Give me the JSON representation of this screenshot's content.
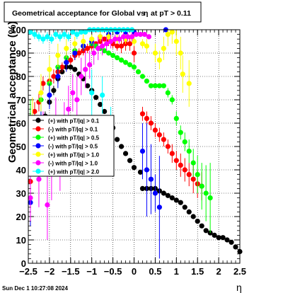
{
  "chart_data": {
    "type": "scatter",
    "title": "Geometrical acceptance for Global vs η at pT > 0.11",
    "title_parts": [
      "Geometrical acceptance for Global vs",
      "η",
      "at pT > 0.11"
    ],
    "xlabel": "η",
    "ylabel": "Geometrical acceptance (%)",
    "xlim": [
      -2.5,
      2.5
    ],
    "ylim": [
      0,
      100
    ],
    "xticks": [
      "−2.5",
      "−2",
      "−1.5",
      "−1",
      "−0.5",
      "0",
      "0.5",
      "1",
      "1.5",
      "2",
      "2.5"
    ],
    "yticks": [
      "0",
      "10",
      "20",
      "30",
      "40",
      "50",
      "60",
      "70",
      "80",
      "90",
      "100"
    ],
    "grid": true,
    "legend_position": "middle-left",
    "timestamp": "Sun Dec  1 10:27:08 2024",
    "series": [
      {
        "name": "(+) with pT/|q| > 0.1",
        "color": "#000000",
        "points": [
          [
            -2.4,
            52,
            0
          ],
          [
            -2.2,
            60,
            2
          ],
          [
            -2.1,
            63,
            2
          ],
          [
            -2.0,
            69,
            2
          ],
          [
            -1.9,
            74,
            2
          ],
          [
            -1.8,
            79,
            2
          ],
          [
            -1.7,
            82,
            1
          ],
          [
            -1.6,
            84,
            1
          ],
          [
            -1.5,
            84,
            1
          ],
          [
            -1.4,
            83,
            1
          ],
          [
            -1.3,
            81,
            1
          ],
          [
            -1.2,
            79,
            1
          ],
          [
            -1.1,
            76,
            1
          ],
          [
            -1.0,
            74,
            1
          ],
          [
            -0.9,
            71,
            1
          ],
          [
            -0.8,
            68,
            1
          ],
          [
            -0.7,
            65,
            1
          ],
          [
            -0.6,
            62,
            1
          ],
          [
            -0.5,
            58,
            1
          ],
          [
            -0.4,
            53,
            1
          ],
          [
            -0.3,
            50,
            1
          ],
          [
            -0.2,
            47,
            1
          ],
          [
            -0.1,
            44,
            1
          ],
          [
            0.0,
            41,
            1
          ],
          [
            0.15,
            39,
            0
          ],
          [
            0.2,
            32,
            1
          ],
          [
            0.3,
            32,
            1
          ],
          [
            0.4,
            32,
            1
          ],
          [
            0.5,
            32,
            1
          ],
          [
            0.6,
            31,
            1
          ],
          [
            0.7,
            30,
            1
          ],
          [
            0.8,
            29,
            1
          ],
          [
            0.9,
            28,
            1
          ],
          [
            1.0,
            27,
            1
          ],
          [
            1.1,
            26,
            1
          ],
          [
            1.2,
            24,
            1
          ],
          [
            1.3,
            22,
            1
          ],
          [
            1.4,
            20,
            1
          ],
          [
            1.5,
            18,
            1
          ],
          [
            1.6,
            16,
            1
          ],
          [
            1.7,
            14,
            1
          ],
          [
            1.8,
            13,
            1
          ],
          [
            1.9,
            12,
            1
          ],
          [
            2.0,
            11,
            1
          ],
          [
            2.1,
            11,
            1
          ],
          [
            2.2,
            10,
            1
          ],
          [
            2.3,
            9,
            1
          ],
          [
            2.4,
            7,
            1
          ],
          [
            2.5,
            5,
            1
          ]
        ]
      },
      {
        "name": "(-) with pT/|q| > 0.1",
        "color": "#ff0000",
        "points": [
          [
            -2.45,
            35,
            5
          ],
          [
            -2.35,
            65,
            4
          ],
          [
            -2.25,
            69,
            4
          ],
          [
            -2.15,
            77,
            3
          ],
          [
            -2.0,
            78,
            3
          ],
          [
            -1.9,
            80,
            3
          ],
          [
            -1.8,
            82,
            2
          ],
          [
            -1.7,
            84,
            2
          ],
          [
            -1.6,
            86,
            2
          ],
          [
            -1.5,
            87,
            2
          ],
          [
            -1.4,
            89,
            2
          ],
          [
            -1.3,
            90,
            2
          ],
          [
            -1.2,
            91,
            2
          ],
          [
            -1.1,
            92,
            2
          ],
          [
            -1.0,
            93,
            2
          ],
          [
            -0.9,
            94,
            1
          ],
          [
            -0.8,
            95,
            1
          ],
          [
            -0.7,
            96,
            1
          ],
          [
            -0.6,
            95,
            2
          ],
          [
            -0.5,
            94,
            2
          ],
          [
            -0.4,
            93,
            2
          ],
          [
            -0.3,
            93,
            3
          ],
          [
            -0.2,
            94,
            3
          ],
          [
            -0.1,
            94,
            3
          ],
          [
            0.0,
            90,
            4
          ],
          [
            0.2,
            64,
            3
          ],
          [
            0.3,
            62,
            3
          ],
          [
            0.4,
            60,
            3
          ],
          [
            0.5,
            57,
            3
          ],
          [
            0.6,
            55,
            3
          ],
          [
            0.7,
            53,
            3
          ],
          [
            0.8,
            50,
            3
          ],
          [
            0.9,
            47,
            4
          ],
          [
            1.0,
            44,
            4
          ],
          [
            1.1,
            42,
            5
          ],
          [
            1.2,
            40,
            5
          ],
          [
            1.3,
            38,
            5
          ],
          [
            1.4,
            36,
            6
          ],
          [
            1.5,
            34,
            6
          ],
          [
            1.6,
            33,
            6
          ]
        ]
      },
      {
        "name": "(+) with pT/|q| > 0.5",
        "color": "#00ff00",
        "points": [
          [
            -2.45,
            60,
            10
          ],
          [
            -2.2,
            70,
            8
          ],
          [
            -2.0,
            77,
            6
          ],
          [
            -1.8,
            84,
            4
          ],
          [
            -1.6,
            88,
            3
          ],
          [
            -1.4,
            91,
            2
          ],
          [
            -1.2,
            93,
            2
          ],
          [
            -1.0,
            94,
            1
          ],
          [
            -0.9,
            93,
            1
          ],
          [
            -0.8,
            92,
            1
          ],
          [
            -0.7,
            91,
            1
          ],
          [
            -0.6,
            90,
            1
          ],
          [
            -0.5,
            89,
            1
          ],
          [
            -0.4,
            88,
            1
          ],
          [
            -0.3,
            87,
            1
          ],
          [
            -0.2,
            86,
            1
          ],
          [
            -0.1,
            85,
            1
          ],
          [
            0.0,
            84,
            1
          ],
          [
            0.1,
            82,
            1
          ],
          [
            0.2,
            80,
            1
          ],
          [
            0.3,
            78,
            1
          ],
          [
            0.4,
            76,
            1
          ],
          [
            0.5,
            76,
            1
          ],
          [
            0.6,
            76,
            1
          ],
          [
            0.7,
            76,
            1
          ],
          [
            0.8,
            73,
            2
          ],
          [
            0.9,
            70,
            2
          ],
          [
            1.0,
            62,
            3
          ],
          [
            1.1,
            56,
            3
          ],
          [
            1.2,
            52,
            4
          ],
          [
            1.3,
            48,
            5
          ],
          [
            1.4,
            43,
            6
          ],
          [
            1.5,
            38,
            8
          ],
          [
            1.6,
            33,
            10
          ],
          [
            1.7,
            30,
            12
          ],
          [
            1.8,
            28,
            15
          ]
        ]
      },
      {
        "name": "(-) with pT/|q| > 0.5",
        "color": "#0000ff",
        "points": [
          [
            -2.45,
            26,
            10
          ],
          [
            -2.2,
            62,
            8
          ],
          [
            -2.0,
            72,
            6
          ],
          [
            -1.8,
            80,
            5
          ],
          [
            -1.6,
            86,
            4
          ],
          [
            -1.4,
            90,
            3
          ],
          [
            -1.2,
            93,
            2
          ],
          [
            -1.0,
            95,
            2
          ],
          [
            -0.8,
            97,
            1
          ],
          [
            -0.6,
            98,
            1
          ],
          [
            -0.4,
            99,
            1
          ],
          [
            -0.2,
            99,
            1
          ],
          [
            0.0,
            99,
            1
          ],
          [
            0.2,
            48,
            12
          ],
          [
            0.3,
            40,
            20
          ],
          [
            0.4,
            36,
            15
          ],
          [
            0.5,
            30,
            8
          ],
          [
            0.6,
            24,
            22
          ],
          [
            0.75,
            100,
            0
          ]
        ]
      },
      {
        "name": "(+) with pT/|q| > 1.0",
        "color": "#ffff00",
        "points": [
          [
            -2.4,
            61,
            10
          ],
          [
            -2.2,
            73,
            8
          ],
          [
            -2.0,
            83,
            6
          ],
          [
            -1.8,
            89,
            5
          ],
          [
            -1.6,
            92,
            4
          ],
          [
            -1.4,
            94,
            3
          ],
          [
            -1.2,
            95,
            3
          ],
          [
            -1.0,
            96,
            2
          ],
          [
            -0.8,
            97,
            2
          ],
          [
            -0.6,
            97,
            2
          ],
          [
            -0.4,
            96,
            2
          ],
          [
            -0.2,
            96,
            2
          ],
          [
            0.0,
            95,
            2
          ],
          [
            0.2,
            94,
            2
          ],
          [
            0.3,
            93,
            3
          ],
          [
            0.5,
            90,
            4
          ],
          [
            0.6,
            87,
            4
          ],
          [
            0.7,
            92,
            5
          ],
          [
            0.8,
            98,
            5
          ],
          [
            0.9,
            99,
            5
          ],
          [
            1.0,
            95,
            6
          ],
          [
            1.1,
            90,
            7
          ],
          [
            1.15,
            81,
            8
          ],
          [
            1.3,
            77,
            10
          ]
        ]
      },
      {
        "name": "(-) with pT/|q| > 1.0",
        "color": "#ff00ff",
        "points": [
          [
            -2.45,
            28,
            10
          ],
          [
            -2.35,
            46,
            8
          ],
          [
            -2.25,
            36,
            12
          ],
          [
            -2.15,
            55,
            10
          ],
          [
            -2.05,
            25,
            15
          ],
          [
            -1.95,
            42,
            15
          ],
          [
            -1.85,
            59,
            12
          ],
          [
            -1.75,
            41,
            10
          ],
          [
            -1.65,
            59,
            10
          ],
          [
            -1.55,
            66,
            10
          ],
          [
            -1.45,
            73,
            8
          ],
          [
            -1.35,
            70,
            10
          ],
          [
            -1.25,
            80,
            8
          ],
          [
            -1.15,
            83,
            8
          ],
          [
            -1.05,
            85,
            6
          ],
          [
            -0.95,
            90,
            5
          ],
          [
            -0.85,
            92,
            5
          ],
          [
            -0.75,
            93,
            4
          ],
          [
            -0.65,
            94,
            3
          ],
          [
            -0.55,
            95,
            3
          ],
          [
            -0.45,
            96,
            2
          ],
          [
            -0.35,
            96,
            2
          ],
          [
            -0.25,
            97,
            2
          ],
          [
            -0.15,
            97,
            2
          ],
          [
            -0.05,
            97,
            2
          ],
          [
            0.05,
            98,
            1
          ],
          [
            0.15,
            98,
            1
          ],
          [
            0.25,
            98,
            1
          ],
          [
            0.35,
            97,
            1
          ]
        ]
      },
      {
        "name": "(+) with pT/|q| > 2.0",
        "color": "#00ffff",
        "points": [
          [
            -2.45,
            99,
            1
          ],
          [
            -2.35,
            98,
            2
          ],
          [
            -2.25,
            97,
            2
          ],
          [
            -2.15,
            96,
            2
          ],
          [
            -2.05,
            97,
            2
          ],
          [
            -1.95,
            96,
            2
          ],
          [
            -1.85,
            98,
            2
          ],
          [
            -1.75,
            97,
            2
          ],
          [
            -1.65,
            98,
            2
          ],
          [
            -1.55,
            97,
            2
          ],
          [
            -1.45,
            99,
            1
          ],
          [
            -1.35,
            98,
            2
          ],
          [
            -1.25,
            99,
            1
          ],
          [
            -1.15,
            99,
            1
          ],
          [
            -1.05,
            100,
            1
          ],
          [
            -0.95,
            100,
            1
          ],
          [
            -0.85,
            100,
            1
          ],
          [
            -0.75,
            100,
            1
          ],
          [
            -0.65,
            100,
            1
          ],
          [
            -0.55,
            100,
            1
          ],
          [
            -0.45,
            100,
            1
          ],
          [
            -0.35,
            100,
            1
          ],
          [
            -0.25,
            100,
            1
          ],
          [
            -0.15,
            100,
            1
          ],
          [
            -0.05,
            100,
            1
          ],
          [
            -1.0,
            73,
            10
          ],
          [
            -0.75,
            72,
            8
          ],
          [
            -0.55,
            57,
            10
          ]
        ]
      }
    ]
  }
}
